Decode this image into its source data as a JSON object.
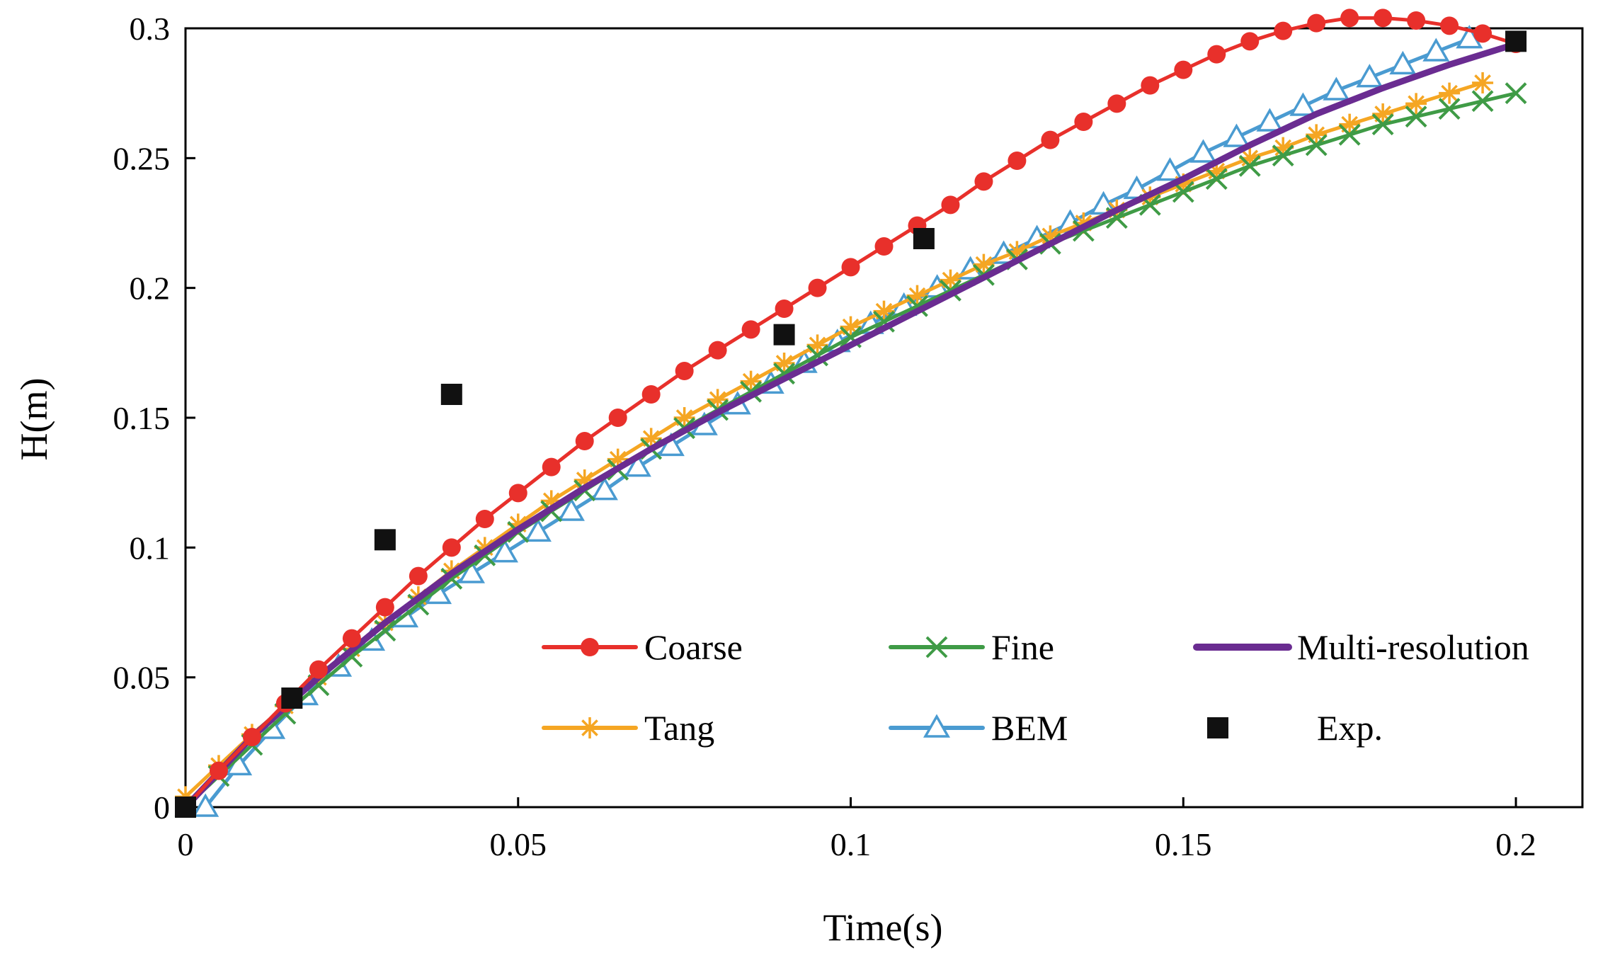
{
  "chart_data": {
    "type": "line",
    "title": "",
    "xlabel": "Time(s)",
    "ylabel": "H(m)",
    "xlim": [
      0,
      0.21
    ],
    "ylim": [
      0,
      0.3
    ],
    "xticks": [
      0,
      0.05,
      0.1,
      0.15,
      0.2
    ],
    "yticks": [
      0,
      0.05,
      0.1,
      0.15,
      0.2,
      0.25,
      0.3
    ],
    "xtick_labels": [
      "0",
      "0.05",
      "0.1",
      "0.15",
      "0.2"
    ],
    "ytick_labels": [
      "0",
      "0.05",
      "0.1",
      "0.15",
      "0.2",
      "0.25",
      "0.3"
    ],
    "grid": false,
    "legend_position": "bottom-right",
    "series": [
      {
        "name": "Coarse",
        "color": "#e8302b",
        "marker": "circle",
        "x": [
          0,
          0.005,
          0.01,
          0.015,
          0.02,
          0.025,
          0.03,
          0.035,
          0.04,
          0.045,
          0.05,
          0.055,
          0.06,
          0.065,
          0.07,
          0.075,
          0.08,
          0.085,
          0.09,
          0.095,
          0.1,
          0.105,
          0.11,
          0.115,
          0.12,
          0.125,
          0.13,
          0.135,
          0.14,
          0.145,
          0.15,
          0.155,
          0.16,
          0.165,
          0.17,
          0.175,
          0.18,
          0.185,
          0.19,
          0.195,
          0.2
        ],
        "y": [
          0,
          0.014,
          0.027,
          0.04,
          0.053,
          0.065,
          0.077,
          0.089,
          0.1,
          0.111,
          0.121,
          0.131,
          0.141,
          0.15,
          0.159,
          0.168,
          0.176,
          0.184,
          0.192,
          0.2,
          0.208,
          0.216,
          0.224,
          0.232,
          0.241,
          0.249,
          0.257,
          0.264,
          0.271,
          0.278,
          0.284,
          0.29,
          0.295,
          0.299,
          0.302,
          0.304,
          0.304,
          0.303,
          0.301,
          0.298,
          0.294
        ]
      },
      {
        "name": "Fine",
        "color": "#3f9b46",
        "marker": "x",
        "x": [
          0,
          0.005,
          0.01,
          0.015,
          0.02,
          0.025,
          0.03,
          0.035,
          0.04,
          0.045,
          0.05,
          0.055,
          0.06,
          0.065,
          0.07,
          0.075,
          0.08,
          0.085,
          0.09,
          0.095,
          0.1,
          0.105,
          0.11,
          0.115,
          0.12,
          0.125,
          0.13,
          0.135,
          0.14,
          0.145,
          0.15,
          0.155,
          0.16,
          0.165,
          0.17,
          0.175,
          0.18,
          0.185,
          0.19,
          0.195,
          0.2
        ],
        "y": [
          0,
          0.012,
          0.024,
          0.036,
          0.047,
          0.058,
          0.068,
          0.078,
          0.088,
          0.097,
          0.106,
          0.114,
          0.122,
          0.13,
          0.138,
          0.146,
          0.153,
          0.16,
          0.167,
          0.174,
          0.181,
          0.187,
          0.193,
          0.199,
          0.205,
          0.211,
          0.217,
          0.222,
          0.227,
          0.232,
          0.237,
          0.242,
          0.247,
          0.251,
          0.255,
          0.259,
          0.263,
          0.266,
          0.269,
          0.272,
          0.275
        ]
      },
      {
        "name": "Multi-resolution",
        "color": "#6a2c91",
        "marker": "none",
        "x": [
          0,
          0.01,
          0.02,
          0.03,
          0.04,
          0.05,
          0.06,
          0.07,
          0.08,
          0.09,
          0.1,
          0.11,
          0.12,
          0.13,
          0.14,
          0.15,
          0.16,
          0.17,
          0.18,
          0.19,
          0.2
        ],
        "y": [
          0,
          0.027,
          0.05,
          0.071,
          0.09,
          0.107,
          0.123,
          0.138,
          0.152,
          0.165,
          0.178,
          0.191,
          0.204,
          0.217,
          0.23,
          0.242,
          0.255,
          0.267,
          0.277,
          0.286,
          0.294
        ]
      },
      {
        "name": "Tang",
        "color": "#f5a623",
        "marker": "asterisk",
        "x": [
          0,
          0.005,
          0.01,
          0.015,
          0.02,
          0.025,
          0.03,
          0.035,
          0.04,
          0.045,
          0.05,
          0.055,
          0.06,
          0.065,
          0.07,
          0.075,
          0.08,
          0.085,
          0.09,
          0.095,
          0.1,
          0.105,
          0.11,
          0.115,
          0.12,
          0.125,
          0.13,
          0.135,
          0.14,
          0.145,
          0.15,
          0.155,
          0.16,
          0.165,
          0.17,
          0.175,
          0.18,
          0.185,
          0.19,
          0.195
        ],
        "y": [
          0.004,
          0.016,
          0.028,
          0.039,
          0.05,
          0.061,
          0.071,
          0.081,
          0.091,
          0.1,
          0.109,
          0.118,
          0.126,
          0.134,
          0.142,
          0.15,
          0.157,
          0.164,
          0.171,
          0.178,
          0.185,
          0.191,
          0.197,
          0.203,
          0.209,
          0.214,
          0.22,
          0.225,
          0.23,
          0.235,
          0.24,
          0.245,
          0.25,
          0.254,
          0.259,
          0.263,
          0.267,
          0.271,
          0.275,
          0.279
        ]
      },
      {
        "name": "BEM",
        "color": "#4a9bd1",
        "marker": "triangle",
        "x": [
          0.003,
          0.008,
          0.013,
          0.018,
          0.023,
          0.028,
          0.033,
          0.038,
          0.043,
          0.048,
          0.053,
          0.058,
          0.063,
          0.068,
          0.073,
          0.078,
          0.083,
          0.088,
          0.093,
          0.098,
          0.103,
          0.108,
          0.113,
          0.118,
          0.123,
          0.128,
          0.133,
          0.138,
          0.143,
          0.148,
          0.153,
          0.158,
          0.163,
          0.168,
          0.173,
          0.178,
          0.183,
          0.188,
          0.193
        ],
        "y": [
          0,
          0.016,
          0.03,
          0.043,
          0.054,
          0.064,
          0.073,
          0.082,
          0.09,
          0.098,
          0.106,
          0.114,
          0.122,
          0.131,
          0.139,
          0.147,
          0.155,
          0.163,
          0.171,
          0.179,
          0.186,
          0.193,
          0.2,
          0.207,
          0.213,
          0.219,
          0.225,
          0.232,
          0.238,
          0.245,
          0.252,
          0.258,
          0.264,
          0.27,
          0.276,
          0.281,
          0.286,
          0.291,
          0.296
        ]
      },
      {
        "name": "Exp.",
        "color": "#111111",
        "marker": "square",
        "scatter": true,
        "x": [
          0,
          0.016,
          0.03,
          0.04,
          0.09,
          0.111,
          0.2
        ],
        "y": [
          0,
          0.042,
          0.103,
          0.159,
          0.182,
          0.219,
          0.295
        ]
      }
    ]
  }
}
